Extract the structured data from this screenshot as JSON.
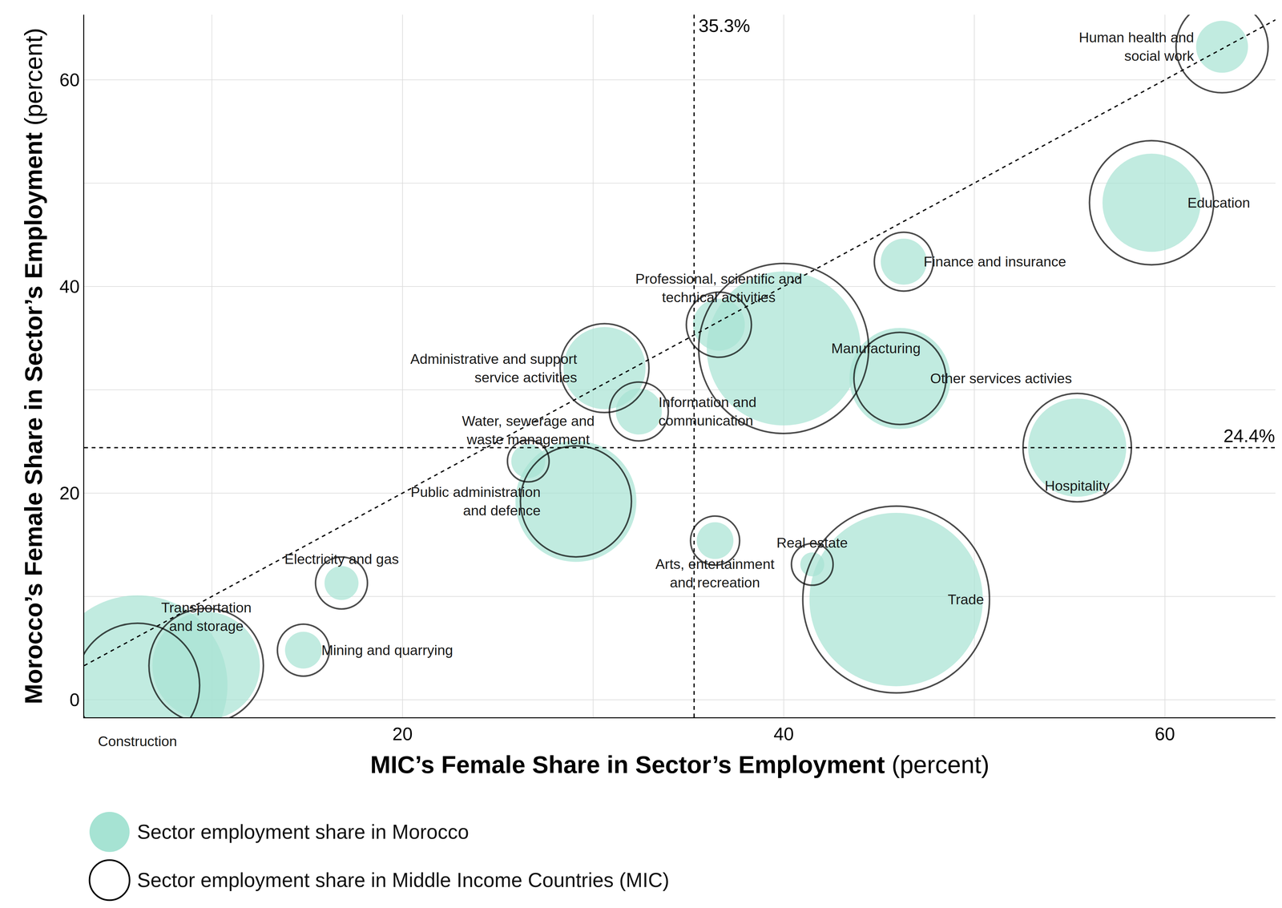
{
  "chart_data": {
    "type": "bubble",
    "x_label": {
      "bold": "MIC’s Female Share in Sector’s Employment",
      "normal": "(percent)"
    },
    "y_label": {
      "bold": "Morocco’s Female Share in Sector’s Employment",
      "normal": "(percent)"
    },
    "categories": [
      "Construction",
      "Transportation\nand storage",
      "Mining and quarrying",
      "Electricity and gas",
      "Water, sewerage and\nwaste management",
      "Public administration\nand defence",
      "Administrative and support\nservice activities",
      "Information and\ncommunication",
      "Professional, scientific and\ntechnical activities",
      "Arts, entertainment\nand recreation",
      "Manufacturing",
      "Real estate",
      "Trade",
      "Other services activies",
      "Finance and insurance",
      "Hospitality",
      "Education",
      "Human health and\nsocial work"
    ],
    "x": [
      6.1,
      9.7,
      14.8,
      16.8,
      26.6,
      29.1,
      30.6,
      32.4,
      36.6,
      36.4,
      40.0,
      41.5,
      45.9,
      46.1,
      46.3,
      55.4,
      59.3,
      63.0
    ],
    "y": [
      1.4,
      3.3,
      4.8,
      11.3,
      23.1,
      19.2,
      32.1,
      27.9,
      36.3,
      15.4,
      34.0,
      13.1,
      9.7,
      31.1,
      42.4,
      24.4,
      48.1,
      63.2
    ],
    "series": [
      {
        "name": "Sector employment share in Morocco",
        "color": "#a6e3d3",
        "marker": "filled",
        "sizes": [
          16.8,
          6.0,
          0.7,
          0.6,
          0.6,
          7.6,
          3.5,
          1.1,
          1.4,
          0.7,
          12.3,
          0.3,
          15.6,
          5.3,
          1.1,
          5.0,
          5.0,
          1.4
        ]
      },
      {
        "name": "Sector employment share in Middle Income Countries (MIC)",
        "color": "#000000",
        "marker": "open",
        "sizes": [
          8.0,
          6.8,
          1.4,
          1.4,
          0.9,
          6.4,
          4.1,
          1.8,
          2.2,
          1.25,
          15.0,
          0.9,
          18.1,
          4.4,
          1.8,
          6.1,
          8.0,
          4.4
        ]
      }
    ],
    "xlim": [
      3.3,
      65.8
    ],
    "ylim": [
      -1.7,
      66.3
    ],
    "xticks": [
      20,
      40,
      60
    ],
    "yticks": [
      0,
      20,
      40,
      60
    ],
    "xminor": [
      10,
      30,
      50
    ],
    "yminor": [
      10,
      30,
      50
    ],
    "grid": true,
    "legend": "bottom left",
    "reference_lines": [
      {
        "axis": "x",
        "value": 35.3,
        "label": "35.3%",
        "line_style": "dashed"
      },
      {
        "axis": "y",
        "value": 24.4,
        "label": "24.4%",
        "line_style": "dashed"
      }
    ],
    "identity_line": {
      "x": [
        3.3,
        65.8
      ],
      "y": [
        3.3,
        65.8
      ],
      "line_style": "dashed"
    }
  }
}
